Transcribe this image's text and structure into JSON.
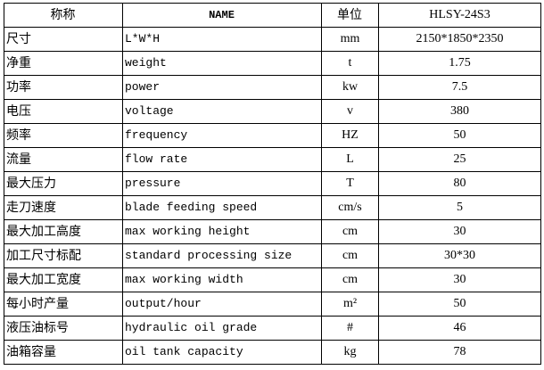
{
  "header": {
    "name_cn": "称称",
    "name_en": "NAME",
    "unit": "单位",
    "model": "HLSY-24S3"
  },
  "rows": [
    {
      "cn": "尺寸",
      "en": "L*W*H",
      "unit": "mm",
      "value": "2150*1850*2350"
    },
    {
      "cn": "净重",
      "en": "weight",
      "unit": "t",
      "value": "1.75"
    },
    {
      "cn": "功率",
      "en": "power",
      "unit": "kw",
      "value": "7.5"
    },
    {
      "cn": "电压",
      "en": "voltage",
      "unit": "v",
      "value": "380"
    },
    {
      "cn": "频率",
      "en": "frequency",
      "unit": "HZ",
      "value": "50"
    },
    {
      "cn": "流量",
      "en": "flow rate",
      "unit": "L",
      "value": "25"
    },
    {
      "cn": "最大压力",
      "en": "pressure",
      "unit": "T",
      "value": "80"
    },
    {
      "cn": "走刀速度",
      "en": "blade feeding speed",
      "unit": "cm/s",
      "value": "5"
    },
    {
      "cn": "最大加工高度",
      "en": "max working height",
      "unit": "cm",
      "value": "30"
    },
    {
      "cn": "加工尺寸标配",
      "en": "standard processing size",
      "unit": "cm",
      "value": "30*30"
    },
    {
      "cn": "最大加工宽度",
      "en": "max working width",
      "unit": "cm",
      "value": "30"
    },
    {
      "cn": "每小时产量",
      "en": "output/hour",
      "unit": "m²",
      "value": "50"
    },
    {
      "cn": "液压油标号",
      "en": "hydraulic oil grade",
      "unit": "#",
      "value": "46"
    },
    {
      "cn": "油箱容量",
      "en": "oil tank capacity",
      "unit": "kg",
      "value": "78"
    }
  ]
}
